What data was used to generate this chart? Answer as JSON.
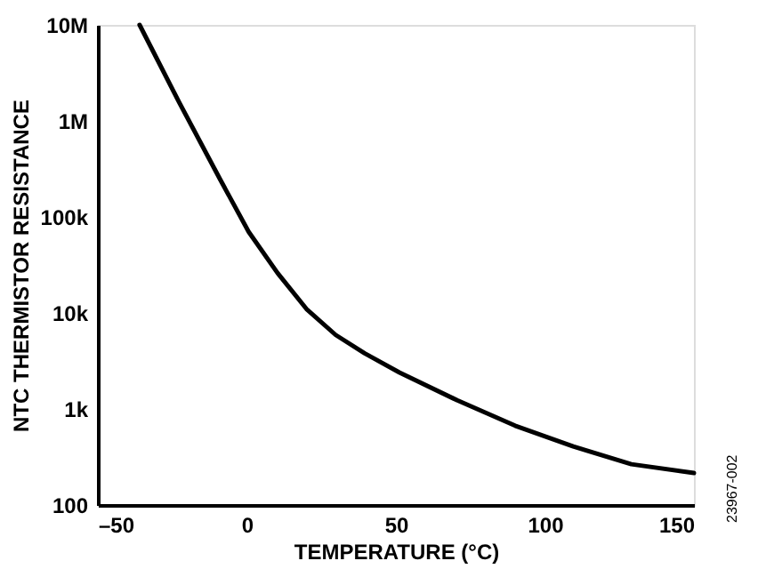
{
  "chart_data": {
    "type": "line",
    "xlabel": "TEMPERATURE (°C)",
    "ylabel": "NTC THERMISTOR RESISTANCE",
    "x": [
      -36,
      -22.8,
      -9.1,
      0.6,
      10.3,
      20,
      29.8,
      39.5,
      51.2,
      70.6,
      90,
      109.5,
      129,
      150
    ],
    "series": [
      {
        "color": "#000000",
        "values": [
          10000000,
          1580000,
          250000,
          70000,
          26000,
          11000,
          5900,
          3800,
          2400,
          1230,
          670,
          407,
          266,
          215
        ]
      }
    ],
    "log": "y",
    "xlim": [
      -50,
      150
    ],
    "ylim": [
      100,
      10000000
    ],
    "xticks": [
      {
        "value": -50,
        "label": "–50"
      },
      0,
      50,
      100,
      150
    ],
    "yticks": [
      100,
      {
        "value": 1000,
        "label": "1k"
      },
      {
        "value": 10000,
        "label": "10k"
      },
      {
        "value": 100000,
        "label": "100k"
      },
      {
        "value": 1000000,
        "label": "1M"
      },
      {
        "value": 10000000,
        "label": "10M"
      }
    ],
    "grid": false,
    "legend": false,
    "marker": "none",
    "line_style": "solid",
    "annotations": [
      "23967-002"
    ]
  }
}
